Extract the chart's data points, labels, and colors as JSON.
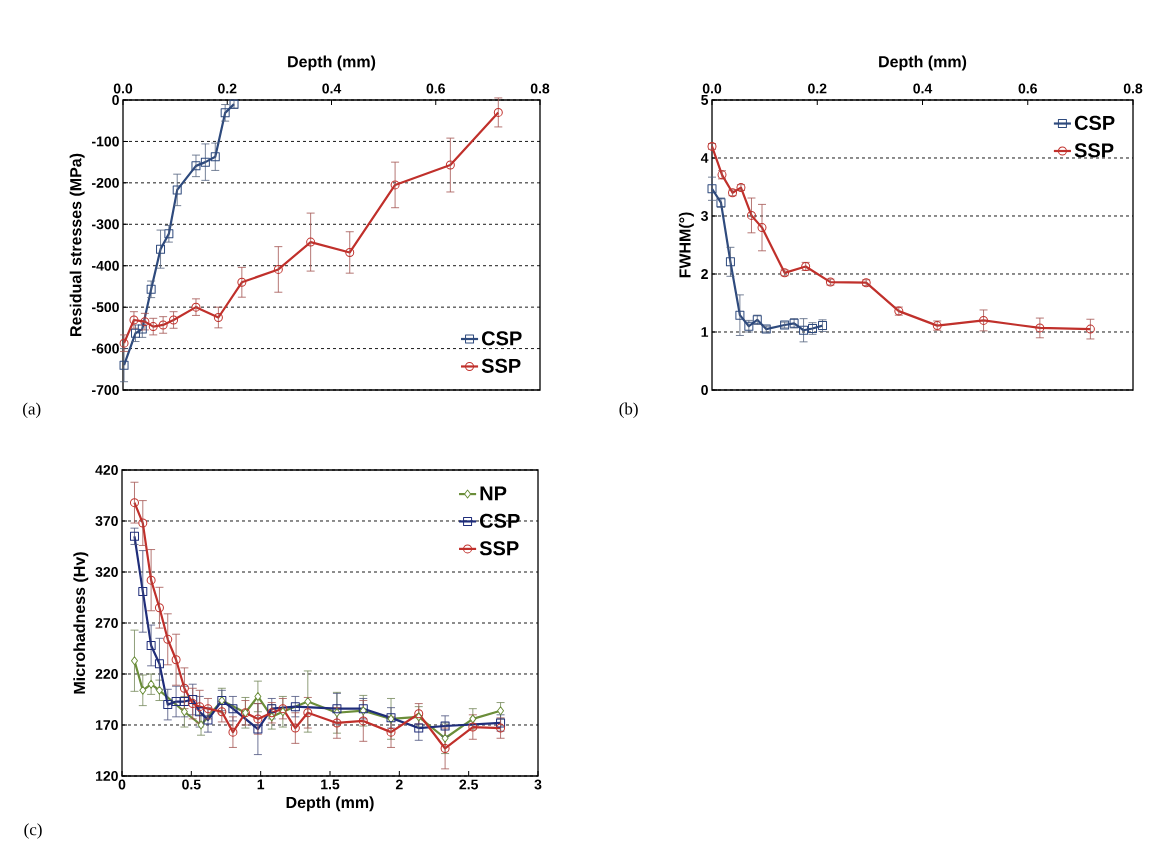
{
  "chart_data": [
    {
      "type": "line",
      "xlabel": "Depth (mm)",
      "ylabel": "Residual stresses (MPa)",
      "xlim": [
        0,
        0.8
      ],
      "xticks": [
        {
          "value": 0,
          "label": "0.0"
        },
        {
          "value": 0.2,
          "label": "0.2"
        },
        {
          "value": 0.4,
          "label": "0.4"
        },
        {
          "value": 0.6,
          "label": "0.6"
        },
        {
          "value": 0.8,
          "label": "0.8"
        }
      ],
      "ylim": [
        -700,
        0
      ],
      "yticks": [
        -700,
        -600,
        -500,
        -400,
        -300,
        -200,
        -100,
        0
      ],
      "grid": "y",
      "legend": "bottom right",
      "annotations": [
        "(a)"
      ],
      "series": [
        {
          "name": "CSP",
          "color": "#2e4a7d",
          "marker": "square",
          "x": [
            0.002,
            0.024,
            0.037,
            0.054,
            0.072,
            0.088,
            0.104,
            0.14,
            0.158,
            0.177,
            0.196,
            0.213
          ],
          "values": [
            -640,
            -563,
            -553,
            -457,
            -360,
            -323,
            -217,
            -159,
            -150,
            -137,
            -31,
            -10
          ],
          "errors": [
            40,
            20,
            20,
            20,
            46,
            20,
            38,
            26,
            44,
            33,
            20,
            10
          ]
        },
        {
          "name": "SSP",
          "color": "#c0302b",
          "marker": "circle",
          "x": [
            0.002,
            0.021,
            0.042,
            0.058,
            0.077,
            0.097,
            0.14,
            0.183,
            0.228,
            0.298,
            0.36,
            0.435,
            0.522,
            0.628,
            0.72
          ],
          "values": [
            -587,
            -531,
            -535,
            -547,
            -543,
            -531,
            -500,
            -525,
            -440,
            -409,
            -343,
            -368,
            -205,
            -157,
            -30
          ],
          "errors": [
            20,
            20,
            20,
            20,
            20,
            20,
            20,
            25,
            36,
            55,
            70,
            50,
            55,
            65,
            35
          ]
        }
      ]
    },
    {
      "type": "line",
      "xlabel": "Depth (mm)",
      "ylabel": "FWHM(°)",
      "xlim": [
        0,
        0.8
      ],
      "xticks": [
        {
          "value": 0,
          "label": "0.0"
        },
        {
          "value": 0.2,
          "label": "0.2"
        },
        {
          "value": 0.4,
          "label": "0.4"
        },
        {
          "value": 0.6,
          "label": "0.6"
        },
        {
          "value": 0.8,
          "label": "0.8"
        }
      ],
      "ylim": [
        0,
        5
      ],
      "yticks": [
        0,
        1,
        2,
        3,
        4,
        5
      ],
      "grid": "y",
      "legend": "top right",
      "annotations": [
        "(b)"
      ],
      "series": [
        {
          "name": "CSP",
          "color": "#2e4a7d",
          "marker": "square",
          "x": [
            0,
            0.017,
            0.035,
            0.053,
            0.07,
            0.086,
            0.103,
            0.138,
            0.156,
            0.174,
            0.191,
            0.21
          ],
          "values": [
            3.47,
            3.23,
            2.21,
            1.29,
            1.1,
            1.21,
            1.05,
            1.12,
            1.15,
            1.03,
            1.06,
            1.11
          ],
          "errors": [
            0.2,
            0.08,
            0.25,
            0.35,
            0.1,
            0.08,
            0.05,
            0.05,
            0.08,
            0.2,
            0.1,
            0.1
          ]
        },
        {
          "name": "SSP",
          "color": "#c0302b",
          "marker": "circle",
          "x": [
            0,
            0.019,
            0.039,
            0.055,
            0.075,
            0.095,
            0.138,
            0.178,
            0.225,
            0.293,
            0.355,
            0.428,
            0.516,
            0.623,
            0.719
          ],
          "values": [
            4.2,
            3.71,
            3.4,
            3.49,
            3.01,
            2.8,
            2.02,
            2.13,
            1.86,
            1.85,
            1.36,
            1.11,
            1.2,
            1.07,
            1.05
          ],
          "errors": [
            0.05,
            0.07,
            0.05,
            0.05,
            0.3,
            0.4,
            0.05,
            0.07,
            0.05,
            0.05,
            0.07,
            0.08,
            0.18,
            0.17,
            0.17
          ]
        }
      ]
    },
    {
      "type": "line",
      "xlabel": "Depth (mm)",
      "ylabel": "Microhadness (Hv)",
      "xlim": [
        0,
        3
      ],
      "xticks": [
        0,
        0.5,
        1,
        1.5,
        2,
        2.5,
        3
      ],
      "ylim": [
        120,
        420
      ],
      "yticks": [
        120,
        170,
        220,
        270,
        320,
        370,
        420
      ],
      "grid": "y",
      "legend": "top right",
      "annotations": [
        "(c)"
      ],
      "series": [
        {
          "name": "NP",
          "color": "#6b8e3a",
          "marker": "diamond",
          "x": [
            0.09,
            0.15,
            0.21,
            0.27,
            0.45,
            0.57,
            0.72,
            0.89,
            0.98,
            1.08,
            1.16,
            1.34,
            1.55,
            1.74,
            1.94,
            2.14,
            2.33,
            2.53,
            2.73
          ],
          "values": [
            233,
            204,
            210,
            204,
            183,
            170,
            194,
            182,
            198,
            178,
            183,
            193,
            182,
            184,
            176,
            178,
            157,
            176,
            184
          ],
          "errors": [
            30,
            15,
            10,
            10,
            15,
            10,
            12,
            15,
            15,
            12,
            15,
            30,
            20,
            15,
            20,
            10,
            15,
            10,
            8
          ]
        },
        {
          "name": "CSP",
          "color": "#1f2d7a",
          "marker": "square",
          "x": [
            0.09,
            0.15,
            0.21,
            0.27,
            0.33,
            0.39,
            0.45,
            0.51,
            0.56,
            0.62,
            0.72,
            0.8,
            0.98,
            1.08,
            1.25,
            1.55,
            1.74,
            1.94,
            2.14,
            2.33,
            2.73
          ],
          "values": [
            355,
            301,
            248,
            230,
            190,
            193,
            193,
            195,
            183,
            175,
            194,
            186,
            166,
            186,
            188,
            186,
            186,
            177,
            167,
            169,
            172
          ],
          "errors": [
            8,
            40,
            20,
            25,
            15,
            15,
            15,
            15,
            15,
            12,
            10,
            12,
            25,
            10,
            10,
            15,
            10,
            10,
            12,
            10,
            8
          ]
        },
        {
          "name": "SSP",
          "color": "#c0302b",
          "marker": "circle",
          "x": [
            0.09,
            0.15,
            0.21,
            0.27,
            0.33,
            0.39,
            0.45,
            0.51,
            0.56,
            0.62,
            0.72,
            0.8,
            0.89,
            0.98,
            1.08,
            1.16,
            1.25,
            1.34,
            1.55,
            1.74,
            1.94,
            2.14,
            2.33,
            2.53,
            2.73
          ],
          "values": [
            388,
            368,
            312,
            285,
            254,
            234,
            206,
            191,
            188,
            186,
            183,
            163,
            182,
            176,
            182,
            186,
            167,
            182,
            172,
            174,
            163,
            181,
            147,
            168,
            167
          ],
          "errors": [
            20,
            22,
            30,
            20,
            25,
            25,
            20,
            15,
            16,
            10,
            10,
            15,
            12,
            15,
            10,
            10,
            15,
            15,
            15,
            20,
            15,
            10,
            20,
            12,
            10
          ]
        }
      ]
    }
  ]
}
